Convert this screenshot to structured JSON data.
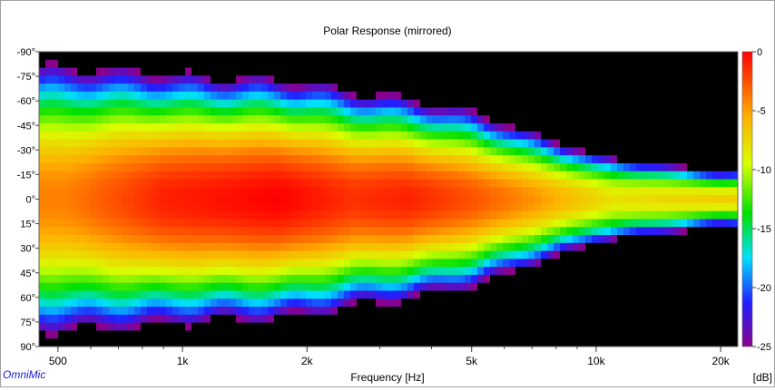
{
  "app": {
    "brand": "OmniMic"
  },
  "chart_data": {
    "type": "heatmap",
    "title": "Polar Response (mirrored)",
    "xlabel": "Frequency [Hz]",
    "ylabel": "",
    "x_scale": "log",
    "xlim": [
      450,
      22000
    ],
    "x_ticks": [
      {
        "value": 500,
        "label": "500"
      },
      {
        "value": 1000,
        "label": "1k"
      },
      {
        "value": 2000,
        "label": "2k"
      },
      {
        "value": 5000,
        "label": "5k"
      },
      {
        "value": 10000,
        "label": "10k"
      },
      {
        "value": 20000,
        "label": "20k"
      }
    ],
    "y_ticks": [
      "-90°",
      "-75°",
      "-60°",
      "-45°",
      "-30°",
      "-15°",
      "0°",
      "15°",
      "30°",
      "45°",
      "60°",
      "75°",
      "90°"
    ],
    "ylim": [
      -90,
      90
    ],
    "colorbar": {
      "unit": "[dB]",
      "range": [
        -25,
        0
      ],
      "ticks": [
        "0",
        "-5",
        "-10",
        "-15",
        "-20",
        "-25"
      ]
    },
    "peaks_db_on_axis": [
      {
        "freq": 520,
        "db": -4
      },
      {
        "freq": 900,
        "db": -1
      },
      {
        "freq": 1700,
        "db": 0
      },
      {
        "freq": 2600,
        "db": -1.5
      },
      {
        "freq": 3500,
        "db": -1
      },
      {
        "freq": 5000,
        "db": -2.5
      },
      {
        "freq": 7000,
        "db": -4.5
      },
      {
        "freq": 11000,
        "db": -8
      },
      {
        "freq": 20000,
        "db": -7
      }
    ],
    "beamwidth_minus10db_deg": [
      {
        "freq": 500,
        "angle": 55
      },
      {
        "freq": 1000,
        "angle": 48
      },
      {
        "freq": 2000,
        "angle": 45
      },
      {
        "freq": 5000,
        "angle": 35
      },
      {
        "freq": 10000,
        "angle": 20
      },
      {
        "freq": 20000,
        "angle": 12
      }
    ]
  }
}
